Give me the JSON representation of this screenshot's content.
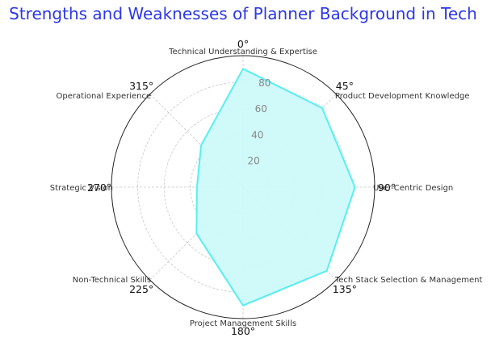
{
  "chart_data": {
    "type": "radar",
    "title": "Strengths and Weaknesses of Planner Background in Tech",
    "categories": [
      "Technical Understanding & Expertise",
      "Product Development Knowledge",
      "User-Centric Design",
      "Tech Stack Selection & Management",
      "Project Management Skills",
      "Non-Technical Skills",
      "Strategic Vision",
      "Operational Experience"
    ],
    "series": [
      {
        "values": [
          90,
          85,
          85,
          90,
          90,
          50,
          35,
          45
        ]
      }
    ],
    "rlim": [
      0,
      100
    ],
    "r_ticks": [
      "20",
      "40",
      "60",
      "80"
    ],
    "r_tick_values": [
      20,
      40,
      60,
      80
    ],
    "angle_labels": [
      "0°",
      "45°",
      "90°",
      "135°",
      "180°",
      "225°",
      "270°",
      "315°"
    ],
    "grid": true,
    "colors": {
      "fill": "#ccfaf9",
      "line": "#59eef0",
      "title": "#2c37e8",
      "frame": "#222222",
      "grid": "#c8c8c8"
    }
  }
}
